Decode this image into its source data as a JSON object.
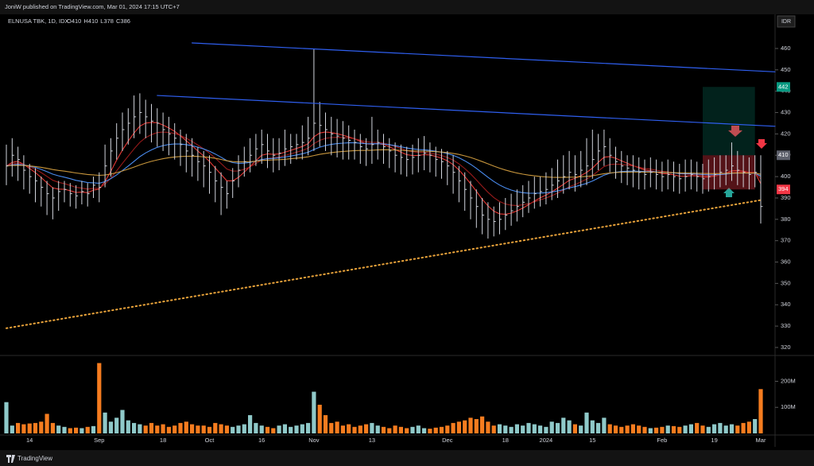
{
  "chart_data": {
    "type": "ohlc",
    "attribution": "JoniW published on TradingView.com, Mar 01, 2024 17:15 UTC+7",
    "symbol": "ELNUSA TBK, 1D, IDX",
    "ohlc": [
      {
        "label": "O",
        "value": 410
      },
      {
        "label": "H",
        "value": 410
      },
      {
        "label": "L",
        "value": 378
      },
      {
        "label": "C",
        "value": 386
      }
    ],
    "currency": "IDR",
    "brand": "TradingView",
    "categories": [
      null,
      null,
      null,
      null,
      "14",
      null,
      null,
      null,
      null,
      null,
      null,
      null,
      null,
      null,
      null,
      null,
      "Sep",
      null,
      null,
      null,
      null,
      null,
      null,
      null,
      null,
      null,
      null,
      "18",
      null,
      null,
      null,
      null,
      null,
      null,
      null,
      "Oct",
      null,
      null,
      null,
      null,
      null,
      null,
      null,
      null,
      "16",
      null,
      null,
      null,
      null,
      null,
      null,
      null,
      null,
      "Nov",
      null,
      null,
      null,
      null,
      null,
      null,
      null,
      null,
      null,
      "13",
      null,
      null,
      null,
      null,
      null,
      null,
      null,
      null,
      null,
      null,
      null,
      null,
      "Dec",
      null,
      null,
      null,
      null,
      null,
      null,
      null,
      null,
      null,
      "18",
      null,
      null,
      null,
      null,
      null,
      null,
      "2024",
      null,
      null,
      null,
      null,
      null,
      null,
      null,
      "15",
      null,
      null,
      null,
      null,
      null,
      null,
      null,
      null,
      null,
      null,
      null,
      "Feb",
      null,
      null,
      null,
      null,
      null,
      null,
      null,
      null,
      "19",
      null,
      null,
      null,
      null,
      null,
      null,
      null,
      "Mar"
    ],
    "high": [
      415,
      418,
      414,
      410,
      406,
      404,
      400,
      398,
      395,
      398,
      398,
      397,
      396,
      398,
      397,
      400,
      402,
      415,
      418,
      425,
      430,
      432,
      438,
      439,
      436,
      434,
      432,
      430,
      428,
      425,
      422,
      420,
      418,
      414,
      412,
      410,
      405,
      402,
      398,
      404,
      410,
      414,
      418,
      420,
      422,
      420,
      418,
      418,
      422,
      420,
      420,
      424,
      428,
      460,
      435,
      430,
      428,
      427,
      426,
      424,
      422,
      420,
      418,
      428,
      422,
      420,
      418,
      416,
      415,
      414,
      415,
      418,
      419,
      416,
      414,
      413,
      412,
      410,
      405,
      402,
      398,
      394,
      390,
      388,
      386,
      388,
      390,
      392,
      394,
      396,
      398,
      400,
      400,
      402,
      404,
      408,
      410,
      412,
      410,
      412,
      418,
      422,
      420,
      422,
      418,
      414,
      412,
      410,
      410,
      409,
      408,
      409,
      408,
      407,
      408,
      407,
      406,
      408,
      408,
      407,
      406,
      408,
      409,
      410,
      410,
      416,
      412,
      410,
      409,
      410,
      410
    ],
    "low": [
      396,
      400,
      398,
      394,
      392,
      388,
      386,
      382,
      380,
      384,
      388,
      386,
      385,
      387,
      386,
      390,
      388,
      395,
      400,
      408,
      412,
      415,
      418,
      420,
      418,
      416,
      414,
      412,
      410,
      408,
      405,
      402,
      400,
      398,
      395,
      392,
      388,
      382,
      385,
      390,
      395,
      400,
      402,
      405,
      406,
      404,
      402,
      403,
      405,
      406,
      408,
      408,
      410,
      412,
      414,
      412,
      410,
      409,
      408,
      408,
      408,
      406,
      405,
      406,
      408,
      406,
      404,
      402,
      401,
      400,
      401,
      402,
      403,
      402,
      400,
      399,
      396,
      392,
      388,
      384,
      380,
      376,
      373,
      371,
      372,
      373,
      375,
      377,
      379,
      381,
      383,
      385,
      386,
      387,
      389,
      390,
      392,
      394,
      393,
      395,
      396,
      399,
      403,
      405,
      402,
      399,
      397,
      396,
      395,
      394,
      394,
      395,
      394,
      393,
      394,
      393,
      392,
      393,
      394,
      393,
      392,
      393,
      394,
      395,
      396,
      398,
      396,
      395,
      394,
      395,
      378
    ],
    "close": [
      405,
      410,
      408,
      403,
      400,
      398,
      395,
      392,
      390,
      393,
      394,
      392,
      391,
      393,
      392,
      396,
      395,
      405,
      412,
      418,
      422,
      425,
      428,
      430,
      428,
      426,
      425,
      422,
      420,
      418,
      415,
      412,
      410,
      407,
      405,
      402,
      398,
      395,
      392,
      398,
      403,
      407,
      410,
      413,
      415,
      412,
      410,
      411,
      413,
      414,
      415,
      416,
      418,
      425,
      424,
      422,
      420,
      419,
      418,
      417,
      416,
      414,
      413,
      415,
      416,
      414,
      412,
      410,
      409,
      408,
      409,
      410,
      411,
      410,
      408,
      407,
      405,
      402,
      398,
      394,
      390,
      386,
      382,
      380,
      379,
      380,
      382,
      384,
      386,
      388,
      390,
      392,
      393,
      394,
      396,
      398,
      400,
      402,
      401,
      403,
      405,
      408,
      412,
      414,
      410,
      407,
      405,
      404,
      403,
      402,
      401,
      402,
      401,
      400,
      401,
      400,
      399,
      400,
      401,
      400,
      399,
      400,
      401,
      402,
      403,
      405,
      403,
      402,
      401,
      402,
      386
    ],
    "volume": [
      120000000,
      30000000,
      40000000,
      35000000,
      38000000,
      40000000,
      45000000,
      75000000,
      40000000,
      30000000,
      25000000,
      20000000,
      22000000,
      20000000,
      25000000,
      28000000,
      270000000,
      80000000,
      45000000,
      60000000,
      90000000,
      50000000,
      40000000,
      35000000,
      30000000,
      40000000,
      30000000,
      35000000,
      25000000,
      30000000,
      40000000,
      45000000,
      35000000,
      30000000,
      30000000,
      25000000,
      40000000,
      35000000,
      30000000,
      25000000,
      30000000,
      35000000,
      70000000,
      40000000,
      30000000,
      25000000,
      20000000,
      30000000,
      35000000,
      25000000,
      30000000,
      35000000,
      40000000,
      160000000,
      110000000,
      70000000,
      40000000,
      45000000,
      30000000,
      35000000,
      25000000,
      30000000,
      35000000,
      40000000,
      30000000,
      25000000,
      20000000,
      30000000,
      25000000,
      20000000,
      25000000,
      30000000,
      20000000,
      18000000,
      22000000,
      25000000,
      30000000,
      40000000,
      45000000,
      50000000,
      60000000,
      55000000,
      65000000,
      45000000,
      30000000,
      35000000,
      30000000,
      25000000,
      35000000,
      30000000,
      40000000,
      35000000,
      30000000,
      25000000,
      45000000,
      40000000,
      60000000,
      50000000,
      35000000,
      30000000,
      80000000,
      50000000,
      40000000,
      60000000,
      35000000,
      30000000,
      25000000,
      30000000,
      35000000,
      30000000,
      25000000,
      20000000,
      22000000,
      25000000,
      30000000,
      28000000,
      25000000,
      30000000,
      35000000,
      40000000,
      30000000,
      25000000,
      35000000,
      40000000,
      30000000,
      35000000,
      30000000,
      40000000,
      45000000,
      55000000,
      170000000
    ],
    "bar_color": "#d1d4dc",
    "up_color": "#8fc9c9",
    "down_color": "#f57c1f",
    "ylim": [
      317,
      476
    ],
    "yticks": [
      320,
      330,
      340,
      350,
      360,
      370,
      380,
      390,
      400,
      410,
      420,
      430,
      440,
      450,
      460
    ],
    "vlim": [
      0,
      290000000
    ],
    "vticks": [
      {
        "value": 100000000,
        "label": "100M"
      },
      {
        "value": 200000000,
        "label": "200M"
      }
    ],
    "ma": [
      {
        "period": 5,
        "color": "#e53935"
      },
      {
        "period": 10,
        "color": "#9a1b1b"
      },
      {
        "period": 20,
        "color": "#4a8cf0"
      },
      {
        "period": 50,
        "color": "#c8963c"
      }
    ],
    "trendlines": [
      {
        "x": [
          32,
          133
        ],
        "y": [
          462.6,
          449
        ],
        "color": "#2f5ff0",
        "style": "solid"
      },
      {
        "x": [
          26,
          133
        ],
        "y": [
          438,
          423.5
        ],
        "color": "#2f5ff0",
        "style": "solid"
      },
      {
        "x": [
          0,
          130
        ],
        "y": [
          329,
          389
        ],
        "color": "#e8a23a",
        "style": "dotted"
      }
    ],
    "position": {
      "start": 120,
      "end": 129,
      "target": 442,
      "entry": 410,
      "stop": 394,
      "target_color": "#089981",
      "entry_color": "#5d606b",
      "stop_color": "#f23645"
    }
  }
}
